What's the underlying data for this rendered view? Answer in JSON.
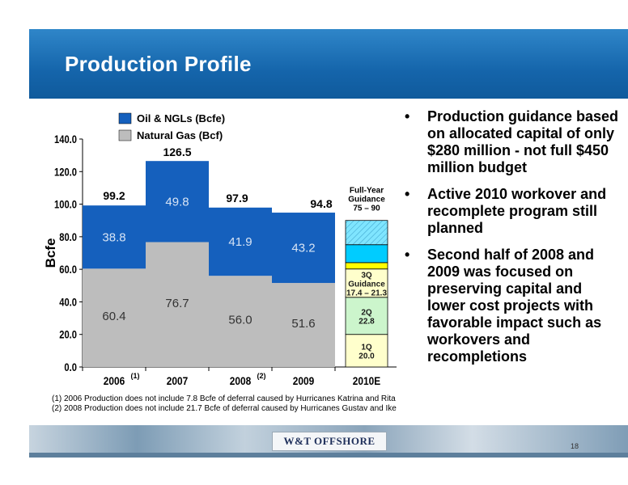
{
  "slide": {
    "title": "Production Profile",
    "page_number": "18",
    "logo_text": "W&T OFFSHORE"
  },
  "bullets": [
    "Production guidance based on allocated capital of only $280 million - not full $450 million budget",
    "Active 2010 workover and recomplete program still planned",
    "Second half of 2008 and 2009 was focused on preserving capital and lower cost projects with favorable impact such as workovers and recompletions"
  ],
  "footnotes": [
    "(1)  2006 Production does not include 7.8 Bcfe of deferral caused by Hurricanes Katrina and Rita",
    "(2)  2008 Production does not include 21.7 Bcfe of deferral caused by Hurricanes Gustav and Ike"
  ],
  "chart_data": {
    "type": "bar",
    "stacked": true,
    "ylabel": "Bcfe",
    "ylim": [
      0,
      140
    ],
    "yticks": [
      "0.0",
      "20.0",
      "40.0",
      "60.0",
      "80.0",
      "100.0",
      "120.0",
      "140.0"
    ],
    "categories": [
      "2006",
      "2007",
      "2008",
      "2009"
    ],
    "category_notes": [
      "(1)",
      "",
      "(2)",
      ""
    ],
    "series": [
      {
        "name": "Natural Gas (Bcf)",
        "values": [
          60.4,
          76.7,
          56.0,
          51.6
        ],
        "labels": [
          "60.4",
          "76.7",
          "56.0",
          "51.6"
        ],
        "color": "#bdbdbd"
      },
      {
        "name": "Oil & NGLs (Bcfe)",
        "values": [
          38.8,
          49.8,
          41.9,
          43.2
        ],
        "labels": [
          "38.8",
          "49.8",
          "41.9",
          "43.2"
        ],
        "color": "#1560bd"
      }
    ],
    "totals": [
      "99.2",
      "126.5",
      "97.9",
      "94.8"
    ],
    "legend": {
      "position": "top",
      "entries": [
        "Oil & NGLs (Bcfe)",
        "Natural Gas (Bcf)"
      ]
    },
    "guidance": {
      "category": "2010E",
      "header": [
        "Full-Year",
        "Guidance",
        "75 – 90"
      ],
      "range": [
        75,
        90
      ],
      "segments": [
        {
          "label": [
            "1Q",
            "20.0"
          ],
          "value": 20.0,
          "color": "#ffffcc"
        },
        {
          "label": [
            "2Q",
            "22.8"
          ],
          "value": 22.8,
          "color": "#ccf5cc"
        },
        {
          "label": [
            "3Q",
            "Guidance",
            "17.4 – 21.3"
          ],
          "value": 17.4,
          "color": "#ffffcc"
        },
        {
          "label": [],
          "value": 3.9,
          "color": "#ffff00"
        },
        {
          "label": [],
          "value": 11.0,
          "color": "#00ccff"
        },
        {
          "label": [],
          "value": 14.9,
          "color": "#7fe5ff",
          "hatched": true
        }
      ]
    }
  }
}
